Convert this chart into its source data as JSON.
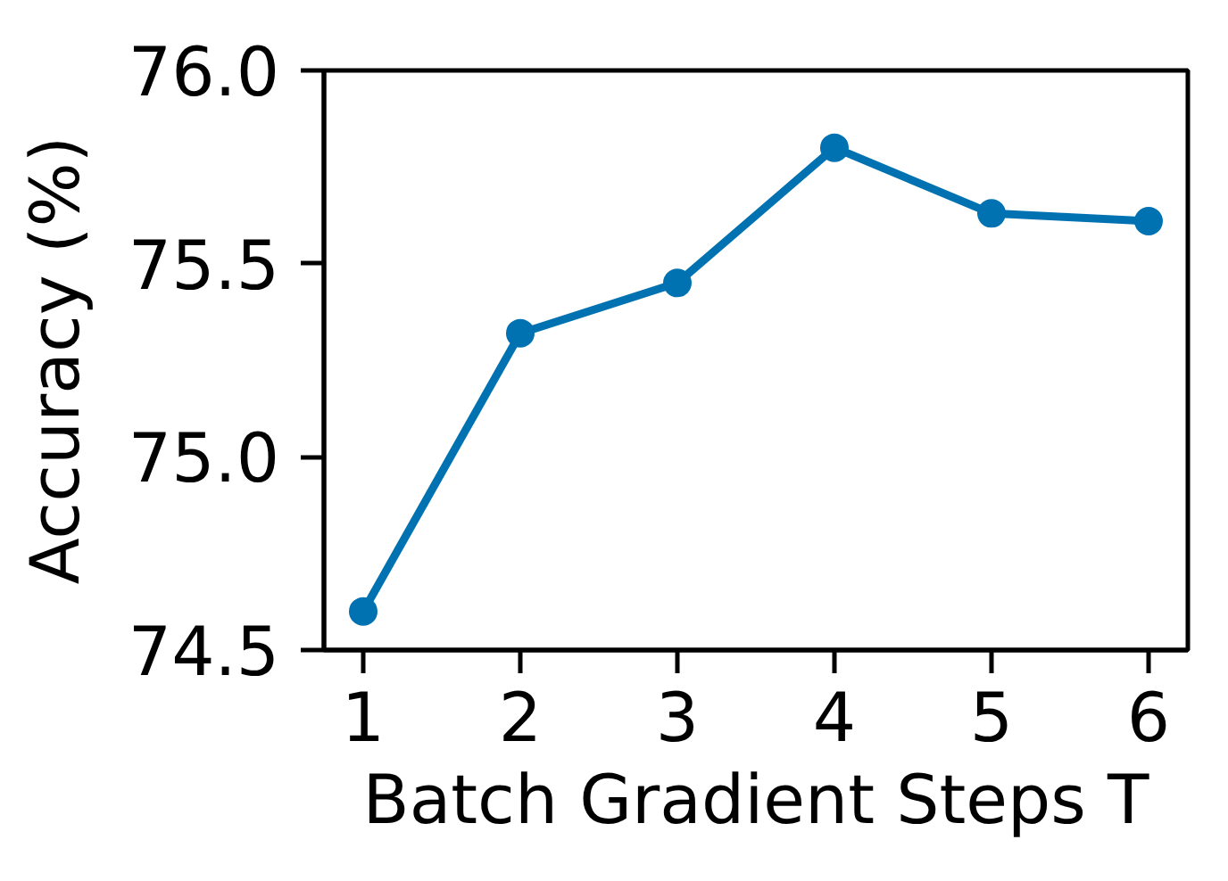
{
  "chart_data": {
    "type": "line",
    "xlabel": "Batch Gradient Steps T",
    "ylabel": "Accuracy (%)",
    "x": [
      1,
      2,
      3,
      4,
      5,
      6
    ],
    "series": [
      {
        "color": "#0072b2",
        "values": [
          74.6,
          75.32,
          75.45,
          75.8,
          75.63,
          75.61
        ]
      }
    ],
    "xlim": [
      0.75,
      6.25
    ],
    "ylim": [
      74.5,
      76.0
    ],
    "xticks": [
      1,
      2,
      3,
      4,
      5,
      6
    ],
    "yticks": [
      74.5,
      {
        "value": 75.0,
        "label": "75.0"
      },
      75.5,
      {
        "value": 76.0,
        "label": "76.0"
      }
    ],
    "grid": false,
    "marker": "circle",
    "line_style": "solid"
  }
}
